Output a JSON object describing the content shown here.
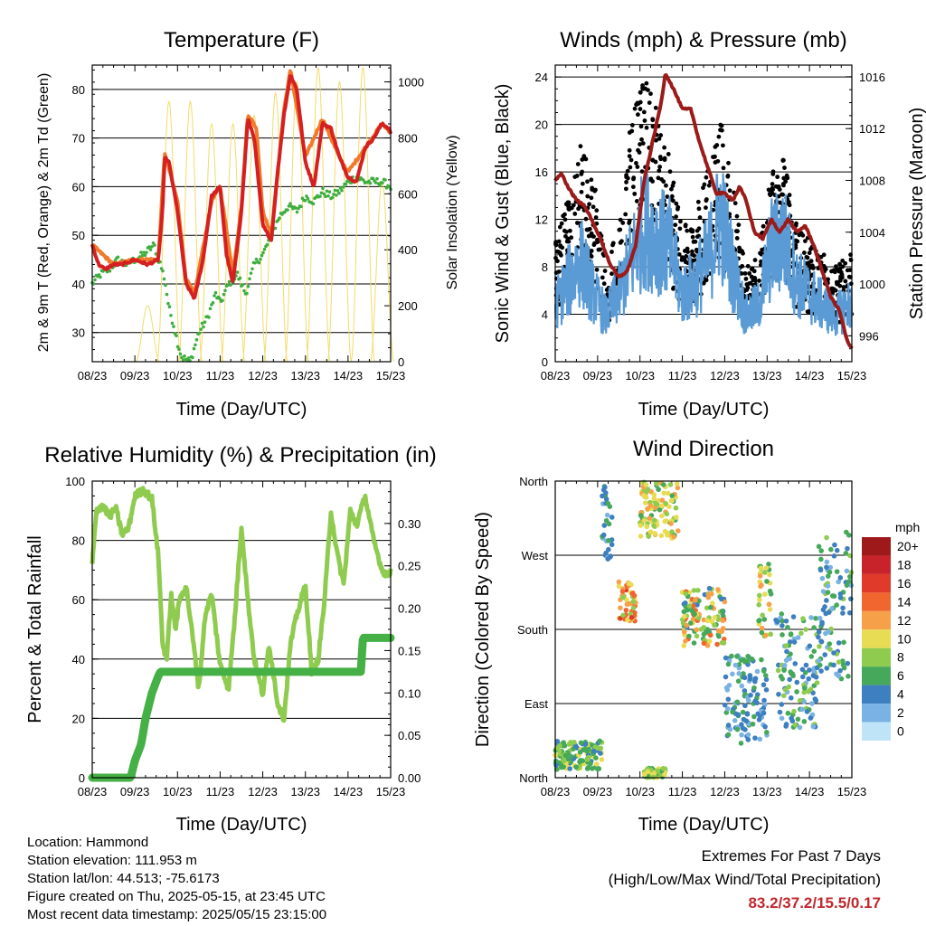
{
  "charts": {
    "temp": {
      "title": "Temperature (F)",
      "xlabel": "Time (Day/UTC)",
      "ylabel": "2m & 9m T (Red, Orange) & 2m Td (Green)",
      "ylabel_right": "Solar Insolation (Yellow)"
    },
    "wind": {
      "title": "Winds (mph) & Pressure (mb)",
      "xlabel": "Time (Day/UTC)",
      "ylabel": "Sonic Wind & Gust (Blue, Black)",
      "ylabel_right": "Station Pressure (Maroon)"
    },
    "rh": {
      "title": "Relative Humidity (%) & Precipitation (in)",
      "xlabel": "Time (Day/UTC)",
      "ylabel": "Percent & Total Rainfall"
    },
    "dir": {
      "title": "Wind Direction",
      "xlabel": "Time (Day/UTC)",
      "ylabel": "Direction (Colored By Speed)",
      "colorbar_title": "mph"
    }
  },
  "info": {
    "location": "Location: Hammond",
    "elevation": "Station elevation: 111.953 m",
    "latlon": "Station lat/lon: 44.513; -75.6173",
    "created": "Figure created on Thu, 2025-05-15, at 23:45 UTC",
    "recent": "Most recent data timestamp: 2025/05/15 23:15:00"
  },
  "extremes": {
    "line1": "Extremes For Past 7 Days",
    "line2": "(High/Low/Max Wind/Total Precipitation)",
    "values": "83.2/37.2/15.5/0.17"
  },
  "colors": {
    "temp2m": "#d42020",
    "temp9m": "#f07a2a",
    "dewpoint": "#3fae3f",
    "solar": "#f2dc6a",
    "gust": "#000000",
    "wind": "#5b9bd5",
    "pressure": "#9b1b1b",
    "rh": "#8fcb4f",
    "precip": "#45b045"
  },
  "chart_data": [
    {
      "type": "line",
      "title": "Temperature (F)",
      "xlabel": "Time (Day/UTC)",
      "ylabel": "2m & 9m T (Red, Orange) & 2m Td (Green)",
      "ylabel_right": "Solar Insolation (Yellow)",
      "x_ticks": [
        "08/23",
        "09/23",
        "10/23",
        "11/23",
        "12/23",
        "13/23",
        "14/23",
        "15/23"
      ],
      "x_range": [
        0,
        7
      ],
      "ylim": [
        24,
        85
      ],
      "y_ticks": [
        30,
        40,
        50,
        60,
        70,
        80
      ],
      "ylim_right": [
        0,
        1060
      ],
      "y_ticks_right": [
        0,
        200,
        400,
        600,
        800,
        1000
      ],
      "grid": true,
      "series": [
        {
          "name": "2m T",
          "x": [
            0,
            0.15,
            0.3,
            0.5,
            0.7,
            1.0,
            1.3,
            1.55,
            1.65,
            1.7,
            1.8,
            2.0,
            2.2,
            2.4,
            2.6,
            2.8,
            3.0,
            3.15,
            3.3,
            3.5,
            3.65,
            3.8,
            4.0,
            4.2,
            4.35,
            4.5,
            4.65,
            4.8,
            5.0,
            5.2,
            5.4,
            5.6,
            5.8,
            6.0,
            6.2,
            6.4,
            6.6,
            6.8,
            6.95,
            7.0
          ],
          "y": [
            48,
            44,
            43,
            44,
            44,
            45,
            44,
            45,
            55,
            66,
            65,
            55,
            40,
            37,
            45,
            58,
            60,
            46,
            40,
            55,
            74,
            70,
            52,
            49,
            63,
            75,
            83,
            80,
            65,
            60,
            73,
            72,
            66,
            62,
            61,
            68,
            70,
            73,
            72,
            71
          ]
        },
        {
          "name": "9m T",
          "x": [
            0,
            0.5,
            1.0,
            1.55,
            1.7,
            2.0,
            2.2,
            2.4,
            2.8,
            3.0,
            3.3,
            3.5,
            3.65,
            3.85,
            4.0,
            4.2,
            4.5,
            4.65,
            5.0,
            5.4,
            5.8,
            6.0,
            6.4,
            6.8,
            7.0
          ],
          "y": [
            48,
            44,
            45,
            45,
            67,
            57,
            41,
            38,
            57,
            60,
            42,
            56,
            75,
            72,
            55,
            50,
            76,
            84,
            66,
            74,
            66,
            63,
            68,
            73,
            71
          ]
        },
        {
          "name": "2m Td",
          "x": [
            0,
            0.2,
            0.4,
            0.6,
            0.8,
            1.0,
            1.2,
            1.45,
            1.6,
            1.7,
            1.8,
            1.9,
            2.0,
            2.1,
            2.3,
            2.5,
            2.7,
            2.9,
            3.0,
            3.2,
            3.4,
            3.6,
            3.8,
            4.0,
            4.2,
            4.4,
            4.6,
            4.8,
            5.0,
            5.2,
            5.4,
            5.6,
            5.8,
            6.0,
            6.2,
            6.4,
            6.6,
            6.8,
            7.0
          ],
          "y": [
            40,
            42,
            43,
            45,
            44,
            45,
            46,
            48,
            44,
            41,
            35,
            32,
            28,
            25,
            24,
            30,
            33,
            38,
            36,
            40,
            42,
            38,
            44,
            46,
            50,
            54,
            56,
            55,
            58,
            57,
            59,
            58,
            59,
            61,
            62,
            61,
            61,
            61,
            60
          ]
        }
      ],
      "series_right": [
        {
          "name": "Solar Insolation",
          "x": [
            1.3,
            1.8,
            2.3,
            2.8,
            3.3,
            3.8,
            4.3,
            4.8,
            5.3,
            5.8,
            6.35,
            6.8
          ],
          "y": [
            200,
            930,
            930,
            850,
            850,
            880,
            960,
            1000,
            1050,
            1000,
            1050,
            640
          ]
        }
      ]
    },
    {
      "type": "line",
      "title": "Winds (mph) & Pressure (mb)",
      "xlabel": "Time (Day/UTC)",
      "ylabel": "Sonic Wind & Gust (Blue, Black)",
      "ylabel_right": "Station Pressure (Maroon)",
      "x_ticks": [
        "08/23",
        "09/23",
        "10/23",
        "11/23",
        "12/23",
        "13/23",
        "14/23",
        "15/23"
      ],
      "x_range": [
        0,
        7
      ],
      "ylim": [
        0,
        25
      ],
      "y_ticks": [
        0,
        4,
        8,
        12,
        16,
        20,
        24
      ],
      "ylim_right": [
        994.0,
        1016.9
      ],
      "y_ticks_right": [
        996,
        1000,
        1004,
        1008,
        1012,
        1016
      ],
      "grid": true,
      "series": [
        {
          "name": "Sonic Wind",
          "x": [
            0,
            0.3,
            0.6,
            0.9,
            1.2,
            1.5,
            1.8,
            2.1,
            2.4,
            2.7,
            3.0,
            3.3,
            3.6,
            3.9,
            4.2,
            4.5,
            4.8,
            5.1,
            5.4,
            5.7,
            6.0,
            6.3,
            6.6,
            6.9,
            7.0
          ],
          "y": [
            5,
            7,
            9,
            6,
            4,
            6,
            9,
            12,
            11,
            10,
            6,
            7,
            9,
            13,
            8,
            4,
            5,
            10,
            11,
            7,
            6,
            5,
            4,
            5,
            5
          ]
        },
        {
          "name": "Gust",
          "x": [
            0,
            0.3,
            0.6,
            0.9,
            1.2,
            1.5,
            1.8,
            2.1,
            2.4,
            2.7,
            3.0,
            3.3,
            3.6,
            3.9,
            4.2,
            4.5,
            4.8,
            5.1,
            5.4,
            5.7,
            6.0,
            6.3,
            6.6,
            6.9,
            7.0
          ],
          "y": [
            9,
            12,
            16,
            14,
            7,
            10,
            18,
            21,
            19,
            15,
            10,
            11,
            14,
            18,
            13,
            7,
            8,
            14,
            15,
            10,
            9,
            8,
            7,
            8,
            8
          ]
        }
      ],
      "series_right": [
        {
          "name": "Station Pressure",
          "x": [
            0,
            0.15,
            0.3,
            0.5,
            0.7,
            1.0,
            1.3,
            1.5,
            1.7,
            1.9,
            2.1,
            2.3,
            2.5,
            2.6,
            2.8,
            3.0,
            3.2,
            3.4,
            3.6,
            3.8,
            4.0,
            4.2,
            4.35,
            4.5,
            4.7,
            4.9,
            5.1,
            5.3,
            5.5,
            5.7,
            5.9,
            6.1,
            6.3,
            6.5,
            6.7,
            6.9,
            7.0
          ],
          "y": [
            1008,
            1008.5,
            1007.5,
            1006.5,
            1006,
            1004,
            1001.5,
            1000.5,
            1001,
            1003,
            1008,
            1011,
            1014,
            1016.3,
            1015,
            1013.5,
            1013.5,
            1011,
            1009,
            1007,
            1007,
            1006.5,
            1007.5,
            1006.5,
            1004,
            1003.5,
            1005,
            1004,
            1005,
            1004,
            1004.5,
            1003,
            1001,
            999,
            998,
            995.5,
            995
          ]
        }
      ]
    },
    {
      "type": "line",
      "title": "Relative Humidity (%) & Precipitation (in)",
      "xlabel": "Time (Day/UTC)",
      "ylabel": "Percent & Total Rainfall",
      "x_ticks": [
        "08/23",
        "09/23",
        "10/23",
        "11/23",
        "12/23",
        "13/23",
        "14/23",
        "15/23"
      ],
      "x_range": [
        0,
        7
      ],
      "ylim": [
        0,
        100
      ],
      "y_ticks": [
        0,
        20,
        40,
        60,
        80,
        100
      ],
      "ylim_right": [
        0,
        0.35
      ],
      "y_ticks_right": [
        0.0,
        0.05,
        0.1,
        0.15,
        0.2,
        0.25,
        0.3
      ],
      "grid": true,
      "series": [
        {
          "name": "RH",
          "x": [
            0,
            0.1,
            0.25,
            0.4,
            0.55,
            0.7,
            0.85,
            1.0,
            1.2,
            1.4,
            1.55,
            1.65,
            1.75,
            1.85,
            1.95,
            2.05,
            2.2,
            2.35,
            2.5,
            2.65,
            2.8,
            3.0,
            3.2,
            3.35,
            3.5,
            3.65,
            3.8,
            4.0,
            4.15,
            4.35,
            4.5,
            4.65,
            4.8,
            5.0,
            5.15,
            5.3,
            5.45,
            5.6,
            5.75,
            5.9,
            6.05,
            6.2,
            6.4,
            6.6,
            6.8,
            6.95,
            7.0
          ],
          "y": [
            72,
            90,
            92,
            88,
            91,
            82,
            84,
            95,
            97,
            94,
            75,
            45,
            40,
            62,
            50,
            60,
            65,
            48,
            30,
            55,
            62,
            38,
            30,
            55,
            85,
            60,
            40,
            28,
            45,
            25,
            20,
            45,
            55,
            65,
            35,
            40,
            60,
            90,
            75,
            65,
            90,
            85,
            95,
            80,
            70,
            68,
            70
          ]
        }
      ],
      "series_right": [
        {
          "name": "Total Precipitation",
          "x": [
            0,
            0.9,
            1.0,
            1.15,
            1.25,
            1.4,
            1.55,
            1.6,
            6.0,
            6.3,
            6.35,
            7.0
          ],
          "y": [
            0.0,
            0.0,
            0.02,
            0.04,
            0.07,
            0.1,
            0.12,
            0.125,
            0.125,
            0.125,
            0.165,
            0.165
          ]
        }
      ]
    },
    {
      "type": "scatter",
      "title": "Wind Direction",
      "xlabel": "Time (Day/UTC)",
      "ylabel": "Direction (Colored By Speed)",
      "x_ticks": [
        "08/23",
        "09/23",
        "10/23",
        "11/23",
        "12/23",
        "13/23",
        "14/23",
        "15/23"
      ],
      "x_range": [
        0,
        7
      ],
      "y_categories": [
        "North",
        "East",
        "South",
        "West",
        "North"
      ],
      "ylim": [
        0,
        360
      ],
      "colorbar": {
        "title": "mph",
        "labels": [
          "20+",
          "18",
          "16",
          "14",
          "12",
          "10",
          "8",
          "6",
          "4",
          "2",
          "0"
        ],
        "colors": [
          "#9e1a1a",
          "#c8232a",
          "#e03a2a",
          "#f0662e",
          "#f7a04a",
          "#e8dc55",
          "#8fcb4f",
          "#45a85a",
          "#3d7fbf",
          "#7ab3e3",
          "#bfe3f7"
        ]
      },
      "clusters": [
        {
          "x": [
            0.0,
            1.1
          ],
          "dir": [
            10,
            45
          ],
          "speed": "4-10"
        },
        {
          "x": [
            1.1,
            1.35
          ],
          "dir": [
            260,
            355
          ],
          "speed": "2-6"
        },
        {
          "x": [
            1.5,
            1.9
          ],
          "dir": [
            190,
            240
          ],
          "speed": "8-16"
        },
        {
          "x": [
            2.0,
            2.9
          ],
          "dir": [
            290,
            360
          ],
          "speed": "6-12"
        },
        {
          "x": [
            2.1,
            2.6
          ],
          "dir": [
            0,
            12
          ],
          "speed": "6-10"
        },
        {
          "x": [
            3.0,
            4.0
          ],
          "dir": [
            160,
            230
          ],
          "speed": "4-14"
        },
        {
          "x": [
            4.0,
            5.0
          ],
          "dir": [
            40,
            150
          ],
          "speed": "2-6"
        },
        {
          "x": [
            4.8,
            5.1
          ],
          "dir": [
            170,
            260
          ],
          "speed": "6-12"
        },
        {
          "x": [
            5.2,
            6.2
          ],
          "dir": [
            60,
            200
          ],
          "speed": "2-8"
        },
        {
          "x": [
            6.2,
            7.0
          ],
          "dir": [
            120,
            300
          ],
          "speed": "2-8"
        }
      ]
    }
  ]
}
